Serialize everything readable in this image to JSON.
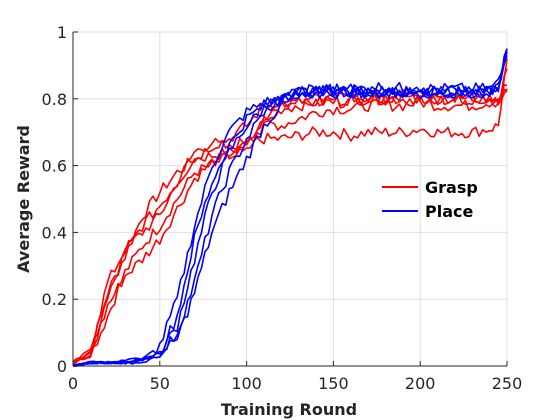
{
  "chart_data": {
    "type": "line",
    "title": "",
    "xlabel": "Training Round",
    "ylabel": "Average Reward",
    "xlim": [
      0,
      250
    ],
    "ylim": [
      0,
      1
    ],
    "xticks": [
      "0",
      "50",
      "100",
      "150",
      "200",
      "250"
    ],
    "yticks": [
      "0",
      "0.2",
      "0.4",
      "0.6",
      "0.8",
      "1"
    ],
    "grid": true,
    "legend_position": "right-middle",
    "colors": {
      "grasp": "#ff0000",
      "place": "#0000ff",
      "grid": "#dfdfdf",
      "axis": "#262626"
    },
    "legend": [
      "Grasp",
      "Place"
    ],
    "x": [
      0,
      10,
      20,
      30,
      40,
      50,
      60,
      70,
      80,
      90,
      100,
      110,
      120,
      130,
      140,
      150,
      160,
      170,
      180,
      190,
      200,
      210,
      220,
      230,
      240,
      245,
      250
    ],
    "series": [
      {
        "group": "grasp",
        "values": [
          0.01,
          0.04,
          0.22,
          0.33,
          0.45,
          0.52,
          0.58,
          0.62,
          0.63,
          0.64,
          0.66,
          0.75,
          0.78,
          0.79,
          0.79,
          0.8,
          0.81,
          0.8,
          0.8,
          0.81,
          0.81,
          0.8,
          0.8,
          0.8,
          0.8,
          0.8,
          0.83
        ]
      },
      {
        "group": "grasp",
        "values": [
          0.01,
          0.03,
          0.15,
          0.28,
          0.36,
          0.42,
          0.5,
          0.58,
          0.6,
          0.63,
          0.66,
          0.68,
          0.68,
          0.69,
          0.7,
          0.7,
          0.69,
          0.7,
          0.7,
          0.7,
          0.71,
          0.7,
          0.7,
          0.7,
          0.71,
          0.72,
          0.92
        ]
      },
      {
        "group": "grasp",
        "values": [
          0.01,
          0.05,
          0.25,
          0.35,
          0.4,
          0.45,
          0.55,
          0.64,
          0.67,
          0.65,
          0.68,
          0.73,
          0.72,
          0.74,
          0.76,
          0.77,
          0.77,
          0.78,
          0.78,
          0.78,
          0.79,
          0.78,
          0.78,
          0.78,
          0.79,
          0.79,
          0.89
        ]
      },
      {
        "group": "grasp",
        "values": [
          0.01,
          0.03,
          0.18,
          0.27,
          0.32,
          0.38,
          0.47,
          0.56,
          0.61,
          0.63,
          0.64,
          0.72,
          0.77,
          0.78,
          0.79,
          0.79,
          0.8,
          0.8,
          0.8,
          0.8,
          0.8,
          0.8,
          0.8,
          0.8,
          0.8,
          0.8,
          0.84
        ]
      },
      {
        "group": "grasp",
        "values": [
          0.01,
          0.04,
          0.2,
          0.34,
          0.42,
          0.48,
          0.55,
          0.62,
          0.66,
          0.68,
          0.72,
          0.78,
          0.78,
          0.79,
          0.8,
          0.79,
          0.79,
          0.8,
          0.8,
          0.81,
          0.8,
          0.8,
          0.8,
          0.8,
          0.8,
          0.8,
          0.82
        ]
      },
      {
        "group": "place",
        "values": [
          0.0,
          0.01,
          0.01,
          0.01,
          0.02,
          0.06,
          0.2,
          0.42,
          0.6,
          0.7,
          0.76,
          0.79,
          0.8,
          0.81,
          0.82,
          0.82,
          0.82,
          0.82,
          0.82,
          0.82,
          0.82,
          0.82,
          0.82,
          0.82,
          0.82,
          0.84,
          0.95
        ]
      },
      {
        "group": "place",
        "values": [
          0.0,
          0.01,
          0.01,
          0.01,
          0.02,
          0.04,
          0.12,
          0.32,
          0.52,
          0.64,
          0.72,
          0.77,
          0.8,
          0.82,
          0.82,
          0.82,
          0.82,
          0.82,
          0.82,
          0.82,
          0.82,
          0.82,
          0.82,
          0.82,
          0.82,
          0.83,
          0.94
        ]
      },
      {
        "group": "place",
        "values": [
          0.0,
          0.01,
          0.01,
          0.02,
          0.02,
          0.03,
          0.1,
          0.25,
          0.45,
          0.58,
          0.68,
          0.76,
          0.8,
          0.82,
          0.83,
          0.83,
          0.83,
          0.83,
          0.84,
          0.83,
          0.83,
          0.83,
          0.83,
          0.83,
          0.83,
          0.85,
          0.93
        ]
      },
      {
        "group": "place",
        "values": [
          0.0,
          0.01,
          0.01,
          0.01,
          0.01,
          0.03,
          0.08,
          0.22,
          0.4,
          0.52,
          0.62,
          0.72,
          0.78,
          0.8,
          0.82,
          0.82,
          0.82,
          0.82,
          0.82,
          0.82,
          0.82,
          0.82,
          0.82,
          0.82,
          0.82,
          0.84,
          0.95
        ]
      },
      {
        "group": "place",
        "values": [
          0.0,
          0.01,
          0.01,
          0.01,
          0.02,
          0.04,
          0.15,
          0.38,
          0.55,
          0.66,
          0.74,
          0.78,
          0.81,
          0.82,
          0.82,
          0.83,
          0.83,
          0.83,
          0.82,
          0.82,
          0.82,
          0.82,
          0.82,
          0.82,
          0.82,
          0.83,
          0.94
        ]
      }
    ]
  }
}
